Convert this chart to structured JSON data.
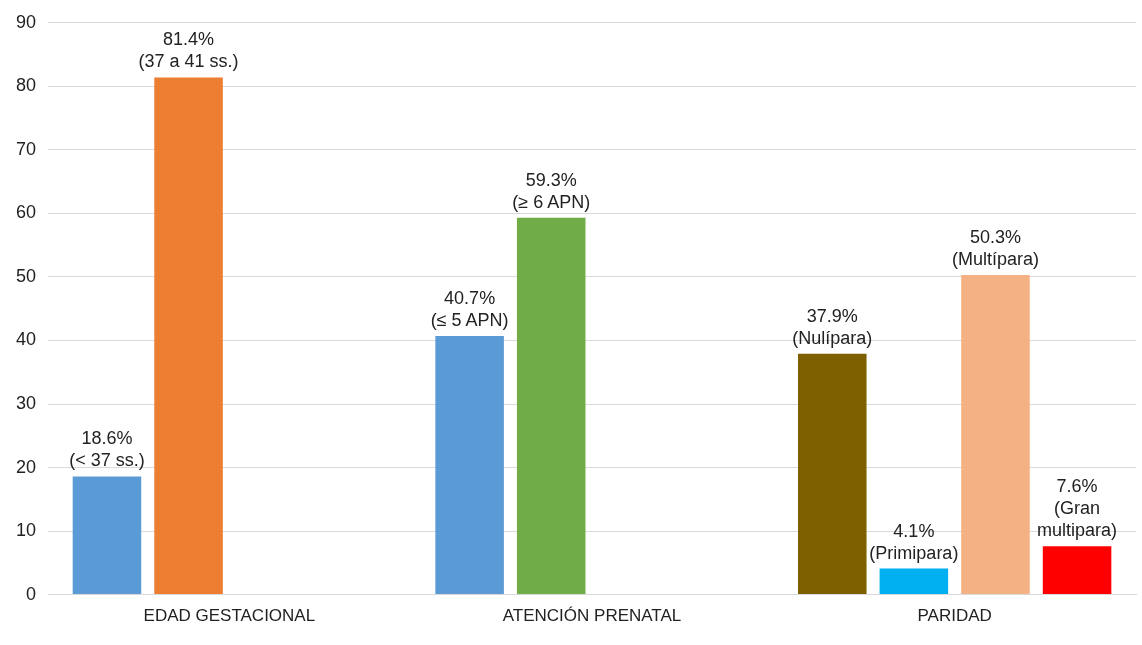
{
  "chart_data": {
    "type": "bar",
    "categories": [
      "EDAD GESTACIONAL",
      "ATENCIÓN PRENATAL",
      "PARIDAD"
    ],
    "series": [
      {
        "colors": [
          "#5b9bd5",
          "#5b9bd5",
          "#7f6000"
        ],
        "values": [
          18.6,
          40.7,
          37.9
        ],
        "value_labels": [
          "18.6%\n(< 37 ss.)",
          "40.7%\n(≤ 5 APN)",
          "37.9%\n(Nulípara)"
        ]
      },
      {
        "colors": [
          "#ed7d31",
          "#70ad47",
          "#00b0f0"
        ],
        "values": [
          81.4,
          59.3,
          4.1
        ],
        "value_labels": [
          "81.4%\n(37 a 41 ss.)",
          "59.3%\n(≥ 6 APN)",
          "4.1%\n(Primipara)"
        ]
      },
      {
        "colors": [
          "#f4b183",
          "#f4b183",
          "#f4b183"
        ],
        "values": [
          null,
          null,
          50.3
        ],
        "value_labels": [
          null,
          null,
          "50.3%\n(Multípara)"
        ]
      },
      {
        "colors": [
          "#ff0000",
          "#ff0000",
          "#ff0000"
        ],
        "values": [
          null,
          null,
          7.6
        ],
        "value_labels": [
          null,
          null,
          "7.6%\n(Gran\nmultipara)"
        ]
      }
    ],
    "ylim": [
      0,
      90
    ],
    "yticks": [
      0,
      10,
      20,
      30,
      40,
      50,
      60,
      70,
      80,
      90
    ],
    "grid": "y",
    "legend": false
  }
}
